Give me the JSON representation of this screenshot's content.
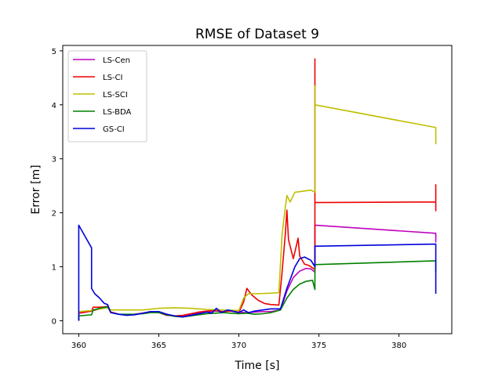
{
  "chart_data": {
    "type": "line",
    "title": "RMSE of Dataset 9",
    "xlabel": "Time [s]",
    "ylabel": "Error [m]",
    "xlim": [
      359,
      383.3
    ],
    "ylim": [
      -0.24,
      5.1
    ],
    "xticks": [
      360,
      365,
      370,
      375,
      380
    ],
    "yticks": [
      0,
      1,
      2,
      3,
      4,
      5
    ],
    "grid": false,
    "legend_position": "top-left",
    "series": [
      {
        "name": "LS-Cen",
        "color": "#bf00bf",
        "points": [
          [
            360.0,
            0.0
          ],
          [
            360.0,
            0.14
          ],
          [
            360.8,
            0.18
          ],
          [
            361.3,
            0.22
          ],
          [
            361.8,
            0.27
          ],
          [
            362.0,
            0.16
          ],
          [
            362.5,
            0.12
          ],
          [
            363.0,
            0.11
          ],
          [
            363.5,
            0.12
          ],
          [
            364.0,
            0.14
          ],
          [
            364.5,
            0.17
          ],
          [
            365.0,
            0.16
          ],
          [
            365.5,
            0.11
          ],
          [
            366.0,
            0.09
          ],
          [
            366.5,
            0.09
          ],
          [
            367.0,
            0.12
          ],
          [
            367.5,
            0.14
          ],
          [
            368.0,
            0.16
          ],
          [
            368.5,
            0.18
          ],
          [
            369.0,
            0.17
          ],
          [
            369.5,
            0.18
          ],
          [
            370.0,
            0.16
          ],
          [
            370.5,
            0.15
          ],
          [
            371.0,
            0.16
          ],
          [
            371.5,
            0.17
          ],
          [
            372.0,
            0.17
          ],
          [
            372.6,
            0.2
          ],
          [
            373.0,
            0.55
          ],
          [
            373.4,
            0.8
          ],
          [
            373.8,
            0.92
          ],
          [
            374.2,
            0.97
          ],
          [
            374.5,
            0.96
          ],
          [
            374.75,
            0.9
          ],
          [
            374.75,
            1.77
          ],
          [
            382.3,
            1.62
          ],
          [
            382.3,
            1.45
          ]
        ]
      },
      {
        "name": "LS-CI",
        "color": "#ee0000",
        "points": [
          [
            360.0,
            0.0
          ],
          [
            360.0,
            0.14
          ],
          [
            360.8,
            0.18
          ],
          [
            360.9,
            0.25
          ],
          [
            361.3,
            0.25
          ],
          [
            361.8,
            0.26
          ],
          [
            362.0,
            0.16
          ],
          [
            362.5,
            0.12
          ],
          [
            363.0,
            0.11
          ],
          [
            363.5,
            0.12
          ],
          [
            364.0,
            0.14
          ],
          [
            364.5,
            0.17
          ],
          [
            365.0,
            0.15
          ],
          [
            365.5,
            0.1
          ],
          [
            366.0,
            0.09
          ],
          [
            366.5,
            0.1
          ],
          [
            367.0,
            0.13
          ],
          [
            367.5,
            0.16
          ],
          [
            368.0,
            0.18
          ],
          [
            368.5,
            0.19
          ],
          [
            369.0,
            0.17
          ],
          [
            369.5,
            0.18
          ],
          [
            370.0,
            0.15
          ],
          [
            370.3,
            0.35
          ],
          [
            370.5,
            0.6
          ],
          [
            370.8,
            0.48
          ],
          [
            371.2,
            0.38
          ],
          [
            371.6,
            0.32
          ],
          [
            372.0,
            0.3
          ],
          [
            372.5,
            0.29
          ],
          [
            372.7,
            0.9
          ],
          [
            372.9,
            1.6
          ],
          [
            373.0,
            2.05
          ],
          [
            373.1,
            1.5
          ],
          [
            373.4,
            1.15
          ],
          [
            373.6,
            1.4
          ],
          [
            373.7,
            1.53
          ],
          [
            373.8,
            1.2
          ],
          [
            374.1,
            1.05
          ],
          [
            374.4,
            1.02
          ],
          [
            374.75,
            0.95
          ],
          [
            374.75,
            4.85
          ],
          [
            374.75,
            2.19
          ],
          [
            382.3,
            2.2
          ],
          [
            382.3,
            2.52
          ],
          [
            382.3,
            2.03
          ]
        ]
      },
      {
        "name": "LS-SCI",
        "color": "#bfbf00",
        "points": [
          [
            360.0,
            0.0
          ],
          [
            360.0,
            0.17
          ],
          [
            360.8,
            0.19
          ],
          [
            361.3,
            0.22
          ],
          [
            361.8,
            0.24
          ],
          [
            362.0,
            0.2
          ],
          [
            363.0,
            0.2
          ],
          [
            364.0,
            0.2
          ],
          [
            365.0,
            0.23
          ],
          [
            366.0,
            0.24
          ],
          [
            367.0,
            0.23
          ],
          [
            368.0,
            0.21
          ],
          [
            369.0,
            0.2
          ],
          [
            370.0,
            0.19
          ],
          [
            370.3,
            0.42
          ],
          [
            370.6,
            0.5
          ],
          [
            371.0,
            0.5
          ],
          [
            372.0,
            0.51
          ],
          [
            372.5,
            0.52
          ],
          [
            372.7,
            1.6
          ],
          [
            372.9,
            2.1
          ],
          [
            373.0,
            2.32
          ],
          [
            373.2,
            2.2
          ],
          [
            373.5,
            2.38
          ],
          [
            374.0,
            2.4
          ],
          [
            374.5,
            2.42
          ],
          [
            374.75,
            2.38
          ],
          [
            374.75,
            4.35
          ],
          [
            374.75,
            4.0
          ],
          [
            382.3,
            3.58
          ],
          [
            382.3,
            3.27
          ]
        ]
      },
      {
        "name": "LS-BDA",
        "color": "#008000",
        "points": [
          [
            360.0,
            0.0
          ],
          [
            360.0,
            0.09
          ],
          [
            360.8,
            0.11
          ],
          [
            360.9,
            0.2
          ],
          [
            361.3,
            0.23
          ],
          [
            361.8,
            0.26
          ],
          [
            362.0,
            0.15
          ],
          [
            362.5,
            0.12
          ],
          [
            363.0,
            0.12
          ],
          [
            363.5,
            0.12
          ],
          [
            364.0,
            0.13
          ],
          [
            364.5,
            0.15
          ],
          [
            365.0,
            0.15
          ],
          [
            365.5,
            0.11
          ],
          [
            366.0,
            0.08
          ],
          [
            366.5,
            0.07
          ],
          [
            367.0,
            0.09
          ],
          [
            367.5,
            0.11
          ],
          [
            368.0,
            0.13
          ],
          [
            368.5,
            0.14
          ],
          [
            369.0,
            0.15
          ],
          [
            369.5,
            0.14
          ],
          [
            370.0,
            0.13
          ],
          [
            370.5,
            0.14
          ],
          [
            371.0,
            0.12
          ],
          [
            371.5,
            0.13
          ],
          [
            372.0,
            0.15
          ],
          [
            372.6,
            0.2
          ],
          [
            373.0,
            0.42
          ],
          [
            373.4,
            0.58
          ],
          [
            373.8,
            0.68
          ],
          [
            374.2,
            0.73
          ],
          [
            374.6,
            0.75
          ],
          [
            374.75,
            0.58
          ],
          [
            374.75,
            1.04
          ],
          [
            382.3,
            1.11
          ],
          [
            382.3,
            0.9
          ]
        ]
      },
      {
        "name": "GS-CI",
        "color": "#0000dd",
        "points": [
          [
            360.0,
            0.0
          ],
          [
            360.0,
            1.77
          ],
          [
            360.8,
            1.35
          ],
          [
            360.8,
            0.6
          ],
          [
            361.0,
            0.5
          ],
          [
            361.3,
            0.42
          ],
          [
            361.6,
            0.32
          ],
          [
            361.8,
            0.3
          ],
          [
            362.0,
            0.15
          ],
          [
            362.5,
            0.12
          ],
          [
            363.0,
            0.1
          ],
          [
            363.5,
            0.11
          ],
          [
            364.0,
            0.14
          ],
          [
            364.5,
            0.17
          ],
          [
            365.0,
            0.17
          ],
          [
            365.5,
            0.12
          ],
          [
            366.0,
            0.09
          ],
          [
            366.5,
            0.07
          ],
          [
            367.0,
            0.1
          ],
          [
            367.5,
            0.13
          ],
          [
            368.0,
            0.16
          ],
          [
            368.3,
            0.14
          ],
          [
            368.6,
            0.23
          ],
          [
            368.9,
            0.15
          ],
          [
            369.3,
            0.2
          ],
          [
            369.6,
            0.18
          ],
          [
            370.0,
            0.15
          ],
          [
            370.3,
            0.2
          ],
          [
            370.6,
            0.15
          ],
          [
            371.0,
            0.18
          ],
          [
            371.5,
            0.2
          ],
          [
            372.0,
            0.22
          ],
          [
            372.6,
            0.22
          ],
          [
            373.0,
            0.6
          ],
          [
            373.5,
            1.0
          ],
          [
            373.8,
            1.15
          ],
          [
            374.1,
            1.18
          ],
          [
            374.5,
            1.12
          ],
          [
            374.75,
            1.0
          ],
          [
            374.75,
            1.38
          ],
          [
            382.3,
            1.42
          ],
          [
            382.3,
            0.5
          ]
        ]
      }
    ]
  }
}
